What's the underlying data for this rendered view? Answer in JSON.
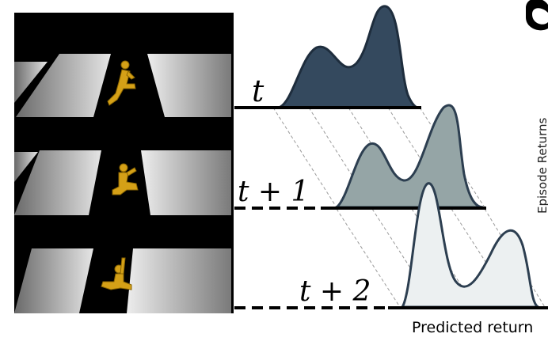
{
  "frames": [
    {
      "time_label": "t"
    },
    {
      "time_label": "t + 1"
    },
    {
      "time_label": "t + 2"
    }
  ],
  "x_axis_label": "Predicted return",
  "side_label": "Episode Returns",
  "distributions": [
    {
      "fill": "#34495e",
      "edge": "#1e2d3d"
    },
    {
      "fill": "#95a5a6",
      "edge": "#2c3e50"
    },
    {
      "fill": "#ecf0f1",
      "edge": "#2c3e50"
    }
  ],
  "colors": {
    "background": "#000000",
    "tile_light": "#e5e5e5",
    "tile_dark": "#6a6a6a",
    "figure": "#d4a017",
    "axis": "#000000",
    "projection": "#9a9a9a"
  }
}
